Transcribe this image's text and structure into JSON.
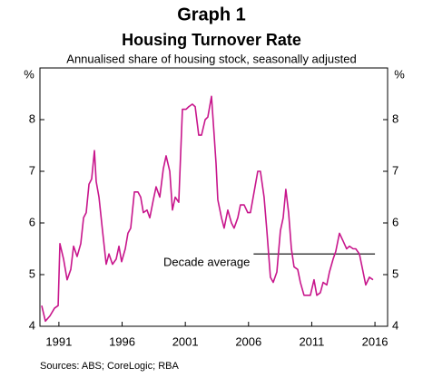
{
  "chart_data": {
    "type": "line",
    "title": "Graph 1",
    "subtitle": "Housing Turnover Rate",
    "description": "Annualised share of housing stock, seasonally adjusted",
    "ylabel": "%",
    "source": "Sources: ABS; CoreLogic; RBA",
    "xlim": [
      1989.5,
      2017.0
    ],
    "xticks": [
      1991,
      1996,
      2001,
      2006,
      2011,
      2016
    ],
    "ylim": [
      4,
      9
    ],
    "yticks": [
      4,
      5,
      6,
      7,
      8
    ],
    "grid": false,
    "x": [
      1989.64,
      1989.93,
      1990.29,
      1990.65,
      1990.94,
      1991.08,
      1991.37,
      1991.65,
      1991.94,
      1992.16,
      1992.44,
      1992.73,
      1992.95,
      1993.16,
      1993.38,
      1993.59,
      1993.81,
      1993.95,
      1994.17,
      1994.45,
      1994.74,
      1994.96,
      1995.24,
      1995.53,
      1995.75,
      1995.96,
      1996.25,
      1996.46,
      1996.68,
      1996.97,
      1997.25,
      1997.47,
      1997.68,
      1997.97,
      1998.19,
      1998.47,
      1998.69,
      1998.98,
      1999.26,
      1999.48,
      1999.77,
      1999.98,
      2000.2,
      2000.48,
      2000.77,
      2001.06,
      2001.27,
      2001.56,
      2001.78,
      2002.06,
      2002.28,
      2002.57,
      2002.78,
      2003.07,
      2003.28,
      2003.43,
      2003.57,
      2003.86,
      2004.07,
      2004.36,
      2004.65,
      2004.86,
      2005.15,
      2005.36,
      2005.65,
      2005.94,
      2006.15,
      2006.44,
      2006.73,
      2006.94,
      2007.23,
      2007.45,
      2007.73,
      2007.95,
      2008.24,
      2008.52,
      2008.74,
      2008.95,
      2009.17,
      2009.39,
      2009.6,
      2009.89,
      2010.1,
      2010.39,
      2010.61,
      2010.89,
      2011.18,
      2011.4,
      2011.68,
      2011.9,
      2012.19,
      2012.4,
      2012.69,
      2012.9,
      2013.19,
      2013.48,
      2013.76,
      2013.98,
      2014.27,
      2014.48,
      2014.77,
      2014.98,
      2015.27,
      2015.56,
      2015.85
    ],
    "series": [
      {
        "name": "Housing turnover rate",
        "color": "#c8168c",
        "values": [
          4.4,
          4.1,
          4.2,
          4.35,
          4.4,
          5.6,
          5.3,
          4.9,
          5.1,
          5.55,
          5.35,
          5.6,
          6.1,
          6.2,
          6.75,
          6.85,
          7.4,
          6.8,
          6.5,
          5.85,
          5.2,
          5.4,
          5.2,
          5.3,
          5.55,
          5.25,
          5.5,
          5.8,
          5.9,
          6.6,
          6.6,
          6.5,
          6.2,
          6.25,
          6.1,
          6.45,
          6.7,
          6.5,
          7.05,
          7.3,
          7.0,
          6.25,
          6.5,
          6.4,
          8.2,
          8.2,
          8.25,
          8.3,
          8.25,
          7.7,
          7.7,
          8.0,
          8.05,
          8.45,
          7.7,
          7.15,
          6.45,
          6.1,
          5.9,
          6.25,
          6.0,
          5.9,
          6.1,
          6.35,
          6.35,
          6.2,
          6.2,
          6.6,
          7.0,
          7.0,
          6.5,
          5.85,
          4.95,
          4.85,
          5.05,
          5.85,
          6.1,
          6.65,
          6.2,
          5.5,
          5.15,
          5.1,
          4.85,
          4.6,
          4.6,
          4.6,
          4.9,
          4.6,
          4.65,
          4.85,
          4.8,
          5.05,
          5.3,
          5.45,
          5.8,
          5.65,
          5.5,
          5.55,
          5.5,
          5.5,
          5.4,
          5.15,
          4.8,
          4.95,
          4.9
        ]
      }
    ],
    "reference_line": {
      "label": "Decade average",
      "value": 5.4,
      "x": [
        2006.4,
        2016.0
      ]
    }
  }
}
